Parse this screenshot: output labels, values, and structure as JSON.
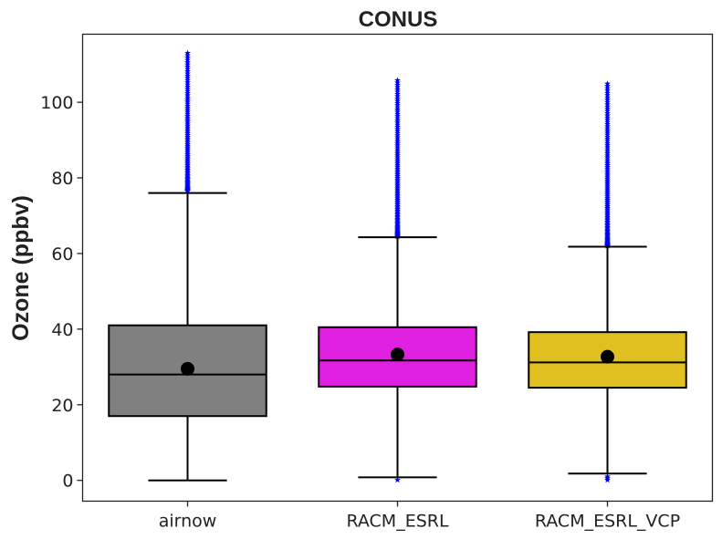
{
  "chart_data": {
    "type": "box",
    "title": "CONUS",
    "xlabel": "",
    "ylabel": "Ozone (ppbv)",
    "ylim": [
      -5.5,
      118
    ],
    "yticks": [
      0,
      20,
      40,
      60,
      80,
      100
    ],
    "grid": false,
    "legend": "none",
    "categories": [
      "airnow",
      "RACM_ESRL",
      "RACM_ESRL_VCP"
    ],
    "boxes": [
      {
        "category": "airnow",
        "color": "#808080",
        "whisker_low": 0,
        "q1": 17,
        "median": 28,
        "q3": 41,
        "whisker_high": 76,
        "mean": 29.5,
        "outliers_high_range": [
          76.5,
          113
        ],
        "outliers_low": []
      },
      {
        "category": "RACM_ESRL",
        "color": "#e020e0",
        "whisker_low": 0.8,
        "q1": 24.8,
        "median": 31.7,
        "q3": 40.5,
        "whisker_high": 64.3,
        "mean": 33.3,
        "outliers_high_range": [
          64.5,
          105.8
        ],
        "outliers_low": [
          0.1
        ]
      },
      {
        "category": "RACM_ESRL_VCP",
        "color": "#e0c020",
        "whisker_low": 1.8,
        "q1": 24.5,
        "median": 31.2,
        "q3": 39.2,
        "whisker_high": 61.8,
        "mean": 32.7,
        "outliers_high_range": [
          62,
          104.9
        ],
        "outliers_low": [
          0.1,
          0.6,
          1.0
        ]
      }
    ],
    "outlier_color": "#0000ff",
    "mean_marker_color": "#000000"
  }
}
